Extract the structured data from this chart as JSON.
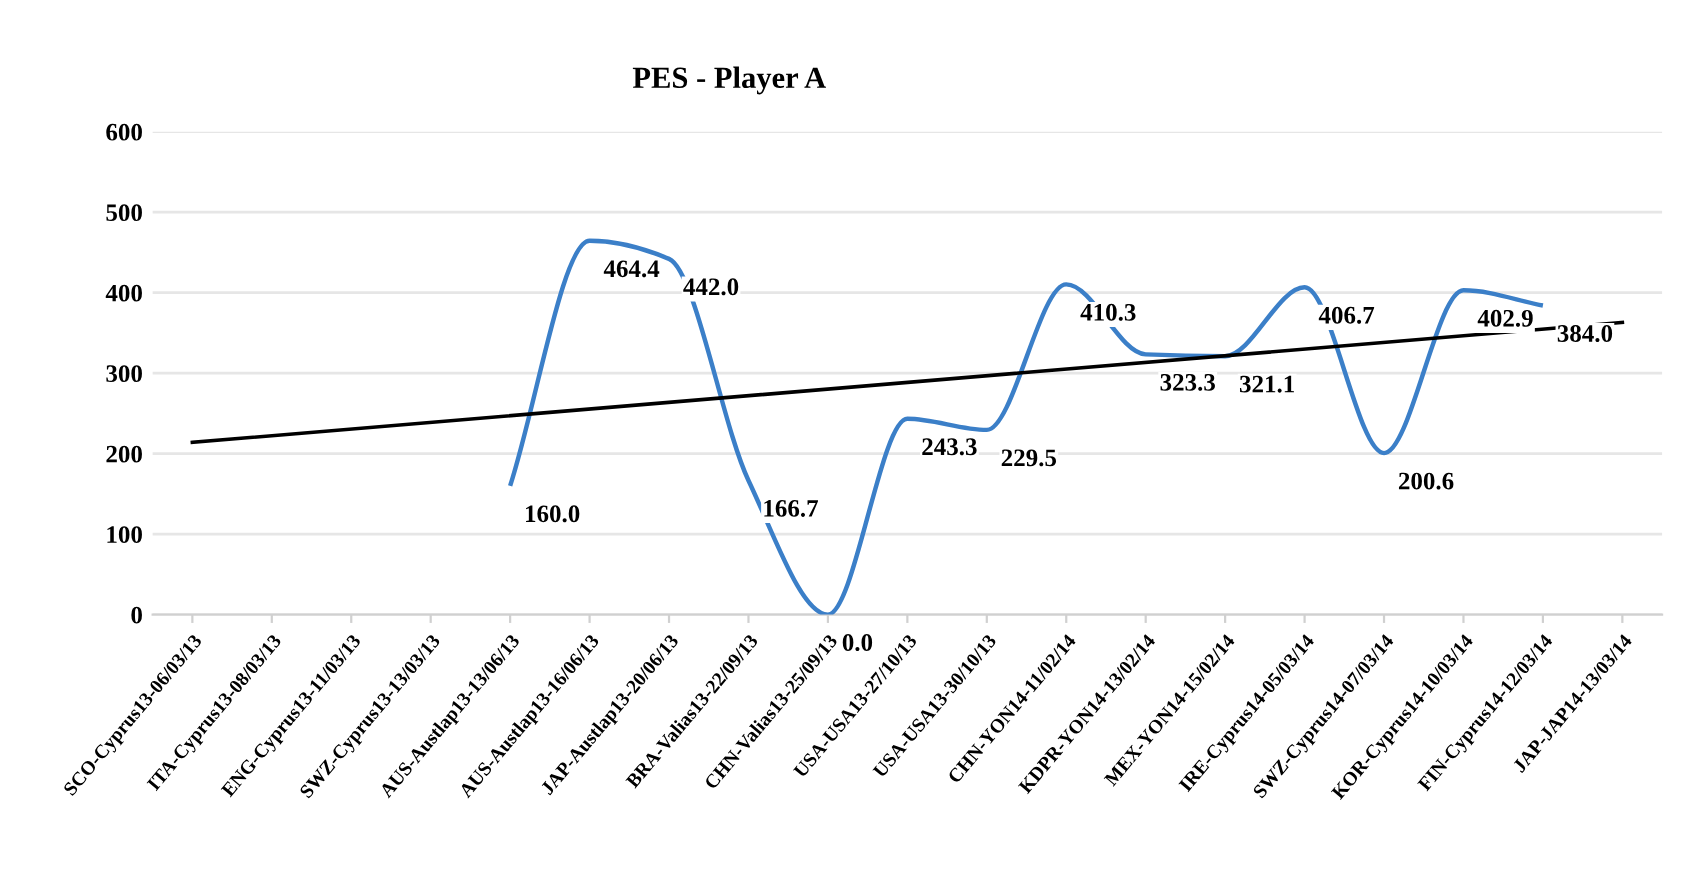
{
  "chart_data": {
    "type": "line",
    "title": "PES - Player A",
    "categories": [
      "SCO-Cyprus13-06/03/13",
      "ITA-Cyprus13-08/03/13",
      "ENG-Cyprus13-11/03/13",
      "SWZ-Cyprus13-13/03/13",
      "AUS-Austlap13-13/06/13",
      "AUS-Austlap13-16/06/13",
      "JAP-Austlap13-20/06/13",
      "BRA-Valias13-22/09/13",
      "CHN-Valias13-25/09/13",
      "USA-USA13-27/10/13",
      "USA-USA13-30/10/13",
      "CHN-YON14-11/02/14",
      "KDPR-YON14-13/02/14",
      "MEX-YON14-15/02/14",
      "IRE-Cyprus14-05/03/14",
      "SWZ-Cyprus14-07/03/14",
      "KOR-Cyprus14-10/03/14",
      "FIN-Cyprus14-12/03/14",
      "JAP-JAP14-13/03/14"
    ],
    "series": [
      {
        "color": "#3b7fc8",
        "values": [
          null,
          null,
          null,
          null,
          160.0,
          464.4,
          442.0,
          166.7,
          0.0,
          243.3,
          229.5,
          410.3,
          323.3,
          321.1,
          406.7,
          200.6,
          402.9,
          384.0,
          null
        ],
        "value_labels": [
          null,
          null,
          null,
          null,
          "160.0",
          "464.4",
          "442.0",
          "166.7",
          "0.0",
          "243.3",
          "229.5",
          "410.3",
          "323.3",
          "321.1",
          "406.7",
          "200.6",
          "402.9",
          "384.0",
          null
        ]
      },
      {
        "color": "#000000",
        "x": [
          "SCO-Cyprus13-06/03/13",
          "JAP-JAP14-13/03/14"
        ],
        "values": [
          214,
          363
        ]
      }
    ],
    "ylim": [
      0,
      600
    ],
    "yticks": [
      0,
      100,
      200,
      300,
      400,
      500,
      600
    ],
    "grid": "y",
    "legend": false,
    "marker": "none",
    "line_style": "solid"
  }
}
